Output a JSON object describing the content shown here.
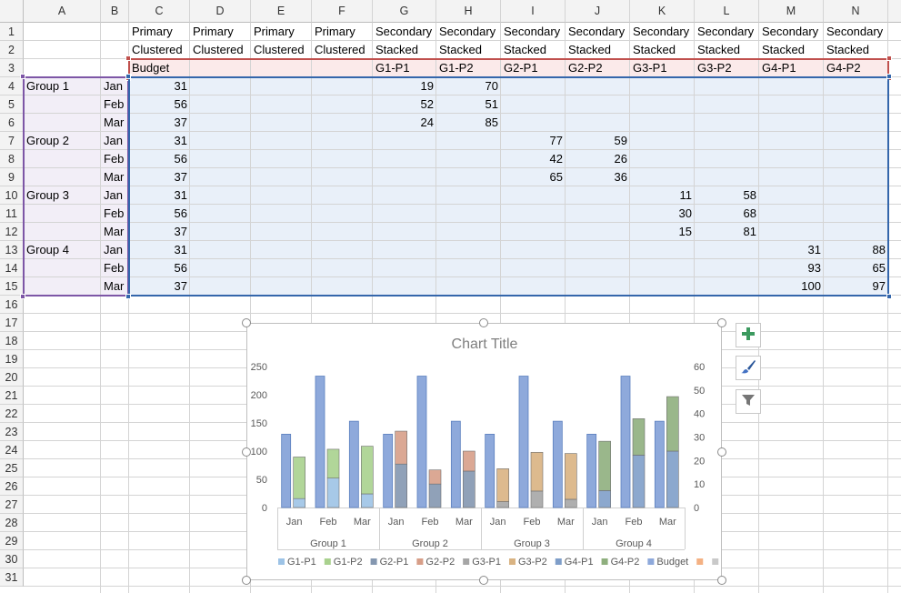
{
  "columns": [
    "A",
    "B",
    "C",
    "D",
    "E",
    "F",
    "G",
    "H",
    "I",
    "J",
    "K",
    "L",
    "M",
    "N"
  ],
  "rows": [
    "1",
    "2",
    "3",
    "4",
    "5",
    "6",
    "7",
    "8",
    "9",
    "10",
    "11",
    "12",
    "13",
    "14",
    "15",
    "16",
    "17",
    "18",
    "19",
    "20",
    "21",
    "22",
    "23",
    "24",
    "25",
    "26",
    "27",
    "28",
    "29",
    "30",
    "31"
  ],
  "header_row1": [
    "Primary",
    "Primary",
    "Primary",
    "Primary",
    "Secondary",
    "Secondary",
    "Secondary",
    "Secondary",
    "Secondary",
    "Secondary",
    "Secondary",
    "Secondary"
  ],
  "header_row2": [
    "Clustered",
    "Clustered",
    "Clustered",
    "Clustered",
    "Stacked",
    "Stacked",
    "Stacked",
    "Stacked",
    "Stacked",
    "Stacked",
    "Stacked",
    "Stacked"
  ],
  "header_row3": [
    "Budget",
    "",
    "",
    "",
    "G1-P1",
    "G1-P2",
    "G2-P1",
    "G2-P2",
    "G3-P1",
    "G3-P2",
    "G4-P1",
    "G4-P2"
  ],
  "group_labels": [
    "Group 1",
    "",
    "",
    "Group 2",
    "",
    "",
    "Group 3",
    "",
    "",
    "Group 4",
    "",
    ""
  ],
  "month_labels": [
    "Jan",
    "Feb",
    "Mar",
    "Jan",
    "Feb",
    "Mar",
    "Jan",
    "Feb",
    "Mar",
    "Jan",
    "Feb",
    "Mar"
  ],
  "table_values": [
    [
      "31",
      "",
      "",
      "",
      "19",
      "70",
      "",
      "",
      "",
      "",
      "",
      ""
    ],
    [
      "56",
      "",
      "",
      "",
      "52",
      "51",
      "",
      "",
      "",
      "",
      "",
      ""
    ],
    [
      "37",
      "",
      "",
      "",
      "24",
      "85",
      "",
      "",
      "",
      "",
      "",
      ""
    ],
    [
      "31",
      "",
      "",
      "",
      "",
      "",
      "77",
      "59",
      "",
      "",
      "",
      ""
    ],
    [
      "56",
      "",
      "",
      "",
      "",
      "",
      "42",
      "26",
      "",
      "",
      "",
      ""
    ],
    [
      "37",
      "",
      "",
      "",
      "",
      "",
      "65",
      "36",
      "",
      "",
      "",
      ""
    ],
    [
      "31",
      "",
      "",
      "",
      "",
      "",
      "",
      "",
      "11",
      "58",
      "",
      ""
    ],
    [
      "56",
      "",
      "",
      "",
      "",
      "",
      "",
      "",
      "30",
      "68",
      "",
      ""
    ],
    [
      "37",
      "",
      "",
      "",
      "",
      "",
      "",
      "",
      "15",
      "81",
      "",
      ""
    ],
    [
      "31",
      "",
      "",
      "",
      "",
      "",
      "",
      "",
      "",
      "",
      "31",
      "88"
    ],
    [
      "56",
      "",
      "",
      "",
      "",
      "",
      "",
      "",
      "",
      "",
      "93",
      "65"
    ],
    [
      "37",
      "",
      "",
      "",
      "",
      "",
      "",
      "",
      "",
      "",
      "100",
      "97"
    ]
  ],
  "chart_data": {
    "type": "bar",
    "title": "Chart Title",
    "categories": [
      "Jan",
      "Feb",
      "Mar",
      "Jan",
      "Feb",
      "Mar",
      "Jan",
      "Feb",
      "Mar",
      "Jan",
      "Feb",
      "Mar"
    ],
    "groups": [
      "Group 1",
      "Group 2",
      "Group 3",
      "Group 4"
    ],
    "primary_axis": {
      "min": 0,
      "max": 250,
      "step": 50,
      "ticks": [
        "0",
        "50",
        "100",
        "150",
        "200",
        "250"
      ]
    },
    "secondary_axis": {
      "min": 0,
      "max": 60,
      "step": 10,
      "ticks": [
        "0",
        "10",
        "20",
        "30",
        "40",
        "50",
        "60"
      ]
    },
    "primary_series": [
      {
        "name": "Budget",
        "axis": "primary",
        "color": "#8ea9db",
        "values": [
          130,
          233,
          153,
          130,
          233,
          153,
          130,
          233,
          153,
          130,
          233,
          153
        ]
      }
    ],
    "secondary_stacks": [
      {
        "name": "G1-P1",
        "color": "#9dc3e6",
        "values": [
          3.8,
          12.5,
          5.8,
          0,
          0,
          0,
          0,
          0,
          0,
          0,
          0,
          0
        ]
      },
      {
        "name": "G1-P2",
        "color": "#a9d18e",
        "values": [
          17.7,
          12.3,
          20.3,
          0,
          0,
          0,
          0,
          0,
          0,
          0,
          0,
          0
        ]
      },
      {
        "name": "G2-P1",
        "color": "#8497b0",
        "values": [
          0,
          0,
          0,
          18.5,
          10,
          15.5,
          0,
          0,
          0,
          0,
          0,
          0
        ]
      },
      {
        "name": "G2-P2",
        "color": "#d79e88",
        "values": [
          0,
          0,
          0,
          14,
          6,
          8.5,
          0,
          0,
          0,
          0,
          0,
          0
        ]
      },
      {
        "name": "G3-P1",
        "color": "#a6a6a6",
        "values": [
          0,
          0,
          0,
          0,
          0,
          0,
          2.5,
          7,
          3.5,
          0,
          0,
          0
        ]
      },
      {
        "name": "G3-P2",
        "color": "#d9b382",
        "values": [
          0,
          0,
          0,
          0,
          0,
          0,
          14,
          16.5,
          19.5,
          0,
          0,
          0
        ]
      },
      {
        "name": "G4-P1",
        "color": "#7f9ec9",
        "values": [
          0,
          0,
          0,
          0,
          0,
          0,
          0,
          0,
          0,
          7.2,
          22.3,
          24
        ]
      },
      {
        "name": "G4-P2",
        "color": "#8faf7e",
        "values": [
          0,
          0,
          0,
          0,
          0,
          0,
          0,
          0,
          0,
          21,
          15.5,
          23.2
        ]
      }
    ],
    "legend": [
      {
        "name": "G1-P1",
        "color": "#9dc3e6"
      },
      {
        "name": "G1-P2",
        "color": "#a9d18e"
      },
      {
        "name": "G2-P1",
        "color": "#8497b0"
      },
      {
        "name": "G2-P2",
        "color": "#d79e88"
      },
      {
        "name": "G3-P1",
        "color": "#a6a6a6"
      },
      {
        "name": "G3-P2",
        "color": "#d9b382"
      },
      {
        "name": "G4-P1",
        "color": "#7f9ec9"
      },
      {
        "name": "G4-P2",
        "color": "#8faf7e"
      },
      {
        "name": "Budget",
        "color": "#8ea9db"
      },
      {
        "name": "",
        "color": "#f4b183"
      },
      {
        "name": "",
        "color": "#c9c9c9"
      },
      {
        "name": "",
        "color": "#ffd966"
      }
    ],
    "legend_position": "bottom",
    "grid": false
  },
  "chart_side_buttons": [
    {
      "icon": "plus-icon",
      "label": "Chart Elements"
    },
    {
      "icon": "brush-icon",
      "label": "Chart Styles"
    },
    {
      "icon": "filter-icon",
      "label": "Chart Filters"
    }
  ]
}
